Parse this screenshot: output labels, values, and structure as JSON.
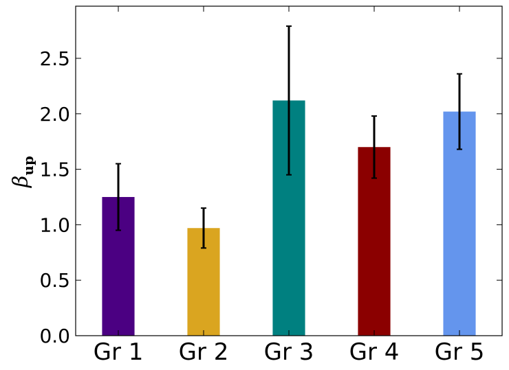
{
  "chart_data": {
    "type": "bar",
    "categories": [
      "Gr 1",
      "Gr 2",
      "Gr 3",
      "Gr 4",
      "Gr 5"
    ],
    "values": [
      1.25,
      0.97,
      2.12,
      1.7,
      2.02
    ],
    "errors": [
      0.3,
      0.18,
      0.67,
      0.28,
      0.34
    ],
    "colors": [
      "#4b0082",
      "#daa520",
      "#008080",
      "#8b0000",
      "#6495ed"
    ],
    "ylabel": "β",
    "ylabel_subscript": "up",
    "xlabel": "",
    "title": "",
    "ylim": [
      0,
      2.97
    ],
    "yticks": [
      0.0,
      0.5,
      1.0,
      1.5,
      2.0,
      2.5
    ],
    "ytick_labels": [
      "0.0",
      "0.5",
      "1.0",
      "1.5",
      "2.0",
      "2.5"
    ],
    "grid": false,
    "error_color": "#000000"
  }
}
